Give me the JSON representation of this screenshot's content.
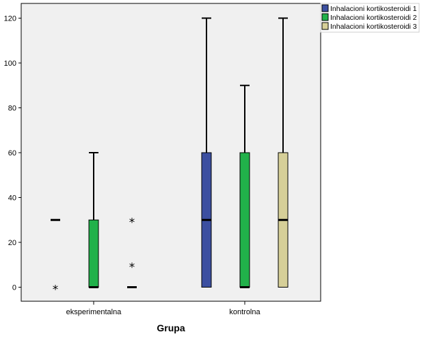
{
  "chart_data": {
    "type": "boxplot",
    "xlabel": "Grupa",
    "ylabel": "",
    "ylim": [
      -6,
      126
    ],
    "yticks": [
      0,
      20,
      40,
      60,
      80,
      100,
      120
    ],
    "categories": [
      "eksperimentalna",
      "kontrolna"
    ],
    "legend_position": "top-right",
    "plot_background": "#f0f0f0",
    "series": [
      {
        "name": "Inhalacioni kortikosteroidi 1",
        "color": "#3c4fa0",
        "boxes": [
          {
            "category": "eksperimentalna",
            "min": 30,
            "q1": 30,
            "median": 30,
            "q3": 30,
            "max": 30,
            "outliers": [
              {
                "value": 0,
                "marker": "star"
              }
            ]
          },
          {
            "category": "kontrolna",
            "min": 0,
            "q1": 0,
            "median": 30,
            "q3": 60,
            "max": 120,
            "outliers": []
          }
        ]
      },
      {
        "name": "Inhalacioni kortikosteroidi 2",
        "color": "#21b14a",
        "boxes": [
          {
            "category": "eksperimentalna",
            "min": 0,
            "q1": 0,
            "median": 0,
            "q3": 30,
            "max": 60,
            "outliers": []
          },
          {
            "category": "kontrolna",
            "min": 0,
            "q1": 0,
            "median": 0,
            "q3": 60,
            "max": 90,
            "outliers": []
          }
        ]
      },
      {
        "name": "Inhalacioni kortikosteroidi 3",
        "color": "#d6cf98",
        "boxes": [
          {
            "category": "eksperimentalna",
            "min": 0,
            "q1": 0,
            "median": 0,
            "q3": 0,
            "max": 0,
            "outliers": [
              {
                "value": 10,
                "marker": "star"
              },
              {
                "value": 30,
                "marker": "star"
              }
            ]
          },
          {
            "category": "kontrolna",
            "min": 0,
            "q1": 0,
            "median": 30,
            "q3": 60,
            "max": 120,
            "outliers": []
          }
        ]
      }
    ]
  }
}
